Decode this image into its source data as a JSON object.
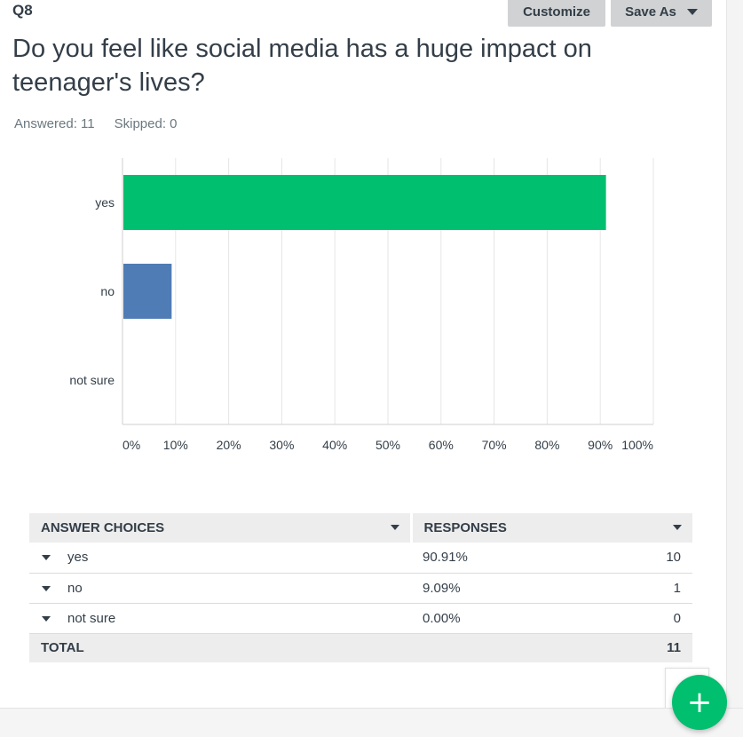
{
  "question": {
    "number": "Q8",
    "text": "Do you feel like social media has a huge impact on teenager's lives?",
    "answered": "Answered: 11",
    "skipped": "Skipped: 0"
  },
  "toolbar": {
    "customize_label": "Customize",
    "save_as_label": "Save As"
  },
  "chart_data": {
    "type": "bar",
    "orientation": "horizontal",
    "categories": [
      "yes",
      "no",
      "not sure"
    ],
    "values": [
      90.91,
      9.09,
      0.0
    ],
    "colors": [
      "#00bf6f",
      "#507cb6",
      "#f05b24"
    ],
    "xlim": [
      0,
      100
    ],
    "xticks": [
      "0%",
      "10%",
      "20%",
      "30%",
      "40%",
      "50%",
      "60%",
      "70%",
      "80%",
      "90%",
      "100%"
    ],
    "grid": true
  },
  "table": {
    "headers": [
      "ANSWER CHOICES",
      "RESPONSES"
    ],
    "rows": [
      {
        "choice": "yes",
        "percent": "90.91%",
        "count": "10"
      },
      {
        "choice": "no",
        "percent": "9.09%",
        "count": "1"
      },
      {
        "choice": "not sure",
        "percent": "0.00%",
        "count": "0"
      }
    ],
    "total_label": "TOTAL",
    "total_count": "11"
  },
  "fab": {
    "icon": "plus-icon",
    "label": "+"
  },
  "colors": {
    "accent": "#00bf6f",
    "text": "#333e48",
    "muted": "#6b787f",
    "button_bg": "#d0d2d3",
    "header_bg": "#ededed"
  }
}
